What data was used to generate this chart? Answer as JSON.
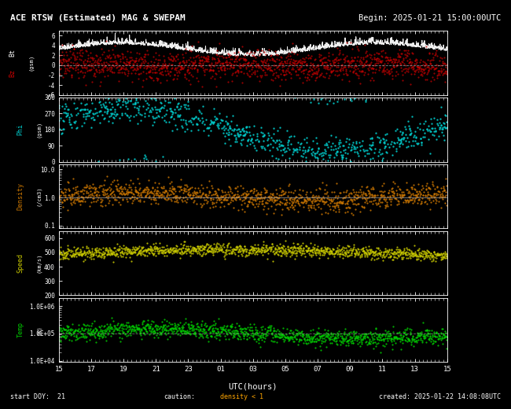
{
  "title": "ACE RTSW (Estimated) MAG & SWEPAM",
  "begin_label": "Begin: 2025-01-21 15:00:00UTC",
  "start_doy_label": "start DOY:  21",
  "caution_label": "caution:",
  "density_caution": "density < 1",
  "created_label": "created: 2025-01-22 14:08:08UTC",
  "xlabel": "UTC(hours)",
  "xtick_labels": [
    "15",
    "17",
    "19",
    "21",
    "23",
    "01",
    "03",
    "05",
    "07",
    "09",
    "11",
    "13",
    "15"
  ],
  "bg_color": "#000000",
  "text_color": "#ffffff",
  "bz_color": "#cc0000",
  "bt_color": "#ffffff",
  "phi_color": "#00cccc",
  "density_color": "#cc7700",
  "speed_color": "#cccc00",
  "temp_color": "#00cc00",
  "hline_color": "#aaaaaa",
  "seed": 42,
  "n_points": 1440,
  "figsize": [
    6.5,
    5.2
  ],
  "dpi": 100
}
